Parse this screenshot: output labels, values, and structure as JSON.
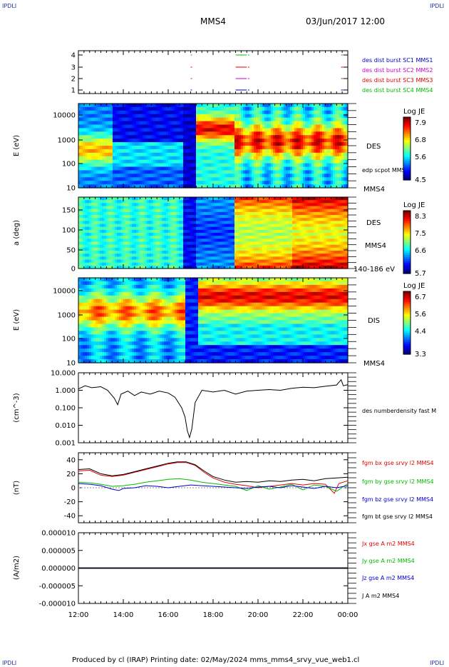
{
  "corner_labels": {
    "tl": "IPDLI",
    "tr": "IPDLI",
    "bl": "IPDLI",
    "br": "IPDLI"
  },
  "header": {
    "spacecraft": "MMS4",
    "datetime": "03/Jun/2017 12:00"
  },
  "footer": {
    "text": "Produced by cl (IRAP)   Printing date: 02/May/2024   mms_mms4_srvy_vue_web1.cl"
  },
  "colors": {
    "red": "#e00000",
    "green": "#00bb00",
    "blue": "#0000cc",
    "magenta": "#cc00cc",
    "black": "#000000"
  },
  "chart_data": [
    {
      "type": "timeline",
      "panel": "burst-availability",
      "y_ticks": [
        "4",
        "3",
        "2",
        "1"
      ],
      "legend": [
        {
          "name": "des dist burst SC1 MMS1",
          "color": "#0000cc"
        },
        {
          "name": "des dist burst SC2 MMS2",
          "color": "#cc00cc"
        },
        {
          "name": "des dist burst SC3 MMS3",
          "color": "#e00000"
        },
        {
          "name": "des dist burst SC4 MMS4",
          "color": "#00bb00"
        }
      ],
      "x_range_hours": [
        12,
        24
      ],
      "burst_intervals_hours": [
        [
          17.0,
          17.05
        ],
        [
          19.0,
          19.5
        ],
        [
          19.55,
          19.6
        ],
        [
          23.7,
          23.8
        ]
      ]
    },
    {
      "type": "heatmap",
      "panel": "des-energy",
      "ylabel": "E (eV)",
      "y_ticks": [
        "10000",
        "1000",
        "100",
        "10"
      ],
      "yscale": "log",
      "ylim": [
        10,
        30000
      ],
      "right_labels": [
        "DES",
        "edp scpot MMS4",
        "MMS4"
      ],
      "colorbar": {
        "title": "Log JE",
        "ticks": [
          "7.9",
          "6.8",
          "5.6",
          "4.5"
        ]
      }
    },
    {
      "type": "heatmap",
      "panel": "des-pitch-angle",
      "ylabel": "a (deg)",
      "y_ticks": [
        "150",
        "100",
        "50",
        "0"
      ],
      "ylim": [
        0,
        180
      ],
      "right_labels": [
        "DES",
        "MMS4",
        "140-186 eV"
      ],
      "colorbar": {
        "title": "Log JE",
        "ticks": [
          "8.3",
          "7.5",
          "6.6",
          "5.7"
        ]
      }
    },
    {
      "type": "heatmap",
      "panel": "dis-energy",
      "ylabel": "E (eV)",
      "y_ticks": [
        "10000",
        "1000",
        "100",
        "10"
      ],
      "yscale": "log",
      "ylim": [
        10,
        30000
      ],
      "right_labels": [
        "DIS",
        "MMS4"
      ],
      "colorbar": {
        "title": "Log JE",
        "ticks": [
          "6.7",
          "5.6",
          "4.4",
          "3.3"
        ]
      }
    },
    {
      "type": "line",
      "panel": "density",
      "ylabel": "(cm^-3)",
      "yscale": "log",
      "y_ticks": [
        "10.000",
        "1.000",
        "0.100",
        "0.010",
        "0.001"
      ],
      "ylim": [
        0.001,
        10
      ],
      "series": [
        {
          "name": "des numberdensity fast M",
          "color": "#000000",
          "points": [
            [
              12.0,
              1.2
            ],
            [
              12.3,
              1.8
            ],
            [
              12.6,
              1.4
            ],
            [
              13.0,
              1.6
            ],
            [
              13.3,
              1.0
            ],
            [
              13.6,
              0.35
            ],
            [
              13.75,
              0.15
            ],
            [
              13.9,
              0.6
            ],
            [
              14.2,
              0.9
            ],
            [
              14.5,
              0.5
            ],
            [
              14.8,
              0.8
            ],
            [
              15.2,
              0.6
            ],
            [
              15.6,
              0.9
            ],
            [
              16.0,
              0.7
            ],
            [
              16.3,
              0.4
            ],
            [
              16.6,
              0.1
            ],
            [
              16.75,
              0.03
            ],
            [
              16.85,
              0.005
            ],
            [
              16.95,
              0.002
            ],
            [
              17.05,
              0.006
            ],
            [
              17.2,
              0.2
            ],
            [
              17.5,
              1.0
            ],
            [
              18.0,
              0.8
            ],
            [
              18.5,
              1.0
            ],
            [
              19.0,
              0.6
            ],
            [
              19.5,
              0.9
            ],
            [
              20.0,
              1.0
            ],
            [
              20.5,
              1.1
            ],
            [
              21.0,
              1.0
            ],
            [
              21.5,
              1.3
            ],
            [
              22.0,
              1.5
            ],
            [
              22.5,
              1.4
            ],
            [
              23.0,
              1.7
            ],
            [
              23.5,
              2.0
            ],
            [
              23.7,
              4.0
            ],
            [
              23.8,
              1.8
            ],
            [
              24.0,
              2.1
            ]
          ]
        }
      ]
    },
    {
      "type": "line",
      "panel": "magnetic-field",
      "ylabel": "(nT)",
      "y_ticks": [
        "40",
        "20",
        "0",
        "-20",
        "-40"
      ],
      "ylim": [
        -50,
        50
      ],
      "series": [
        {
          "name": "fgm bx gse srvy l2 MMS4",
          "color": "#e00000",
          "points": [
            [
              12.0,
              24
            ],
            [
              12.5,
              25
            ],
            [
              13.0,
              18
            ],
            [
              13.5,
              16
            ],
            [
              14.0,
              18
            ],
            [
              14.5,
              22
            ],
            [
              15.0,
              26
            ],
            [
              15.5,
              30
            ],
            [
              16.0,
              34
            ],
            [
              16.4,
              36
            ],
            [
              16.8,
              36
            ],
            [
              17.2,
              32
            ],
            [
              17.6,
              22
            ],
            [
              18.0,
              14
            ],
            [
              18.5,
              8
            ],
            [
              19.0,
              5
            ],
            [
              19.5,
              3
            ],
            [
              20.0,
              0
            ],
            [
              20.5,
              2
            ],
            [
              21.0,
              4
            ],
            [
              21.5,
              6
            ],
            [
              22.0,
              4
            ],
            [
              22.5,
              6
            ],
            [
              23.0,
              5
            ],
            [
              23.4,
              -8
            ],
            [
              23.6,
              6
            ],
            [
              24.0,
              10
            ]
          ]
        },
        {
          "name": "fgm by gse srvy l2 MMS4",
          "color": "#00bb00",
          "points": [
            [
              12.0,
              8
            ],
            [
              12.5,
              7
            ],
            [
              13.0,
              5
            ],
            [
              13.5,
              2
            ],
            [
              14.0,
              3
            ],
            [
              14.5,
              5
            ],
            [
              15.0,
              8
            ],
            [
              15.5,
              10
            ],
            [
              16.0,
              12
            ],
            [
              16.5,
              13
            ],
            [
              17.0,
              11
            ],
            [
              17.5,
              8
            ],
            [
              18.0,
              6
            ],
            [
              18.5,
              4
            ],
            [
              19.0,
              2
            ],
            [
              19.5,
              -4
            ],
            [
              20.0,
              3
            ],
            [
              20.5,
              -2
            ],
            [
              21.0,
              1
            ],
            [
              21.5,
              5
            ],
            [
              22.0,
              -3
            ],
            [
              22.5,
              4
            ],
            [
              23.0,
              2
            ],
            [
              23.5,
              -5
            ],
            [
              24.0,
              6
            ]
          ]
        },
        {
          "name": "fgm bz gse srvy l2 MMS4",
          "color": "#0000cc",
          "points": [
            [
              12.0,
              6
            ],
            [
              12.5,
              5
            ],
            [
              13.0,
              3
            ],
            [
              13.5,
              -2
            ],
            [
              13.8,
              -4
            ],
            [
              14.0,
              -1
            ],
            [
              14.5,
              0
            ],
            [
              15.0,
              3
            ],
            [
              15.5,
              2
            ],
            [
              16.0,
              0
            ],
            [
              16.5,
              2
            ],
            [
              17.0,
              4
            ],
            [
              17.5,
              3
            ],
            [
              18.0,
              2
            ],
            [
              18.5,
              1
            ],
            [
              19.0,
              0
            ],
            [
              19.5,
              -1
            ],
            [
              20.0,
              1
            ],
            [
              20.5,
              2
            ],
            [
              21.0,
              0
            ],
            [
              21.5,
              3
            ],
            [
              22.0,
              1
            ],
            [
              22.5,
              -1
            ],
            [
              23.0,
              2
            ],
            [
              23.5,
              0
            ],
            [
              24.0,
              3
            ]
          ]
        },
        {
          "name": "fgm bt gse srvy l2 MMS4",
          "color": "#000000",
          "points": [
            [
              12.0,
              26
            ],
            [
              12.5,
              27
            ],
            [
              13.0,
              20
            ],
            [
              13.5,
              17
            ],
            [
              14.0,
              19
            ],
            [
              14.5,
              23
            ],
            [
              15.0,
              27
            ],
            [
              15.5,
              31
            ],
            [
              16.0,
              35
            ],
            [
              16.4,
              37
            ],
            [
              16.8,
              37
            ],
            [
              17.2,
              33
            ],
            [
              17.6,
              24
            ],
            [
              18.0,
              16
            ],
            [
              18.5,
              11
            ],
            [
              19.0,
              8
            ],
            [
              19.5,
              9
            ],
            [
              20.0,
              8
            ],
            [
              20.5,
              10
            ],
            [
              21.0,
              9
            ],
            [
              21.5,
              11
            ],
            [
              22.0,
              12
            ],
            [
              22.5,
              10
            ],
            [
              23.0,
              13
            ],
            [
              23.5,
              14
            ],
            [
              24.0,
              15
            ]
          ]
        }
      ]
    },
    {
      "type": "line",
      "panel": "current-density",
      "ylabel": "(A/m2)",
      "y_ticks": [
        "0.000010",
        "0.000005",
        "0.000000",
        "-0.000005",
        "-0.000010"
      ],
      "ylim": [
        -1e-05,
        1e-05
      ],
      "series": [
        {
          "name": "Jx gse A m2 MMS4",
          "color": "#e00000",
          "points": [
            [
              12.0,
              0
            ],
            [
              24.0,
              0
            ]
          ]
        },
        {
          "name": "Jy gse A m2 MMS4",
          "color": "#00bb00",
          "points": [
            [
              12.0,
              0
            ],
            [
              24.0,
              0
            ]
          ]
        },
        {
          "name": "Jz gse A m2 MMS4",
          "color": "#0000cc",
          "points": [
            [
              12.0,
              0
            ],
            [
              24.0,
              0
            ]
          ]
        },
        {
          "name": "J A m2 MMS4",
          "color": "#000000",
          "points": [
            [
              12.0,
              0
            ],
            [
              24.0,
              0
            ]
          ]
        }
      ]
    }
  ],
  "x_axis": {
    "ticks": [
      "12:00",
      "14:00",
      "16:00",
      "18:00",
      "20:00",
      "22:00",
      "00:00"
    ],
    "range_hours": [
      12,
      24
    ]
  }
}
